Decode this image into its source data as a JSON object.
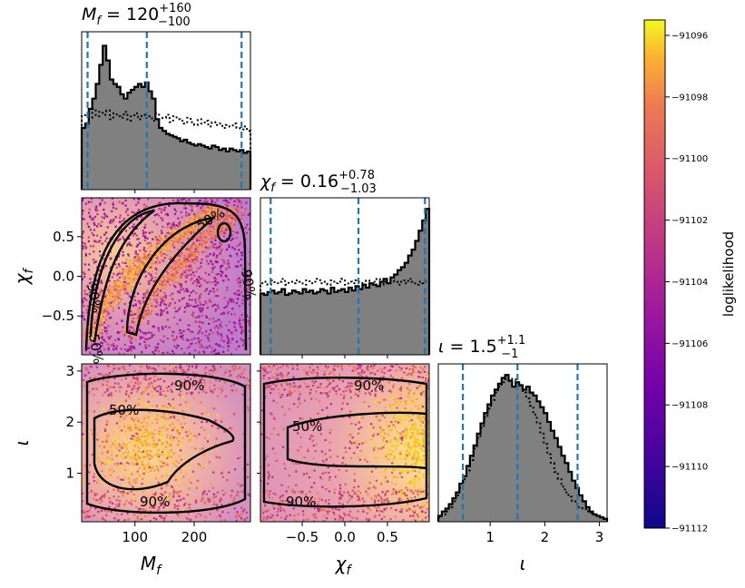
{
  "chart_data": {
    "type": "corner",
    "parameters": [
      {
        "symbol": "M",
        "sub": "f",
        "median": "120",
        "upper": "+160",
        "lower": "−100",
        "range": [
          10,
          295
        ]
      },
      {
        "symbol": "χ",
        "sub": "f",
        "median": "0.16",
        "upper": "+0.78",
        "lower": "−1.03",
        "range": [
          -0.99,
          0.99
        ]
      },
      {
        "symbol": "ι",
        "sub": "",
        "median": "1.5",
        "upper": "+1.1",
        "lower": "−1",
        "range": [
          0.05,
          3.14
        ]
      }
    ],
    "quantile_lines": {
      "M_f": [
        20,
        120,
        280
      ],
      "chi_f": [
        -0.87,
        0.16,
        0.94
      ],
      "iota": [
        0.5,
        1.5,
        2.6
      ]
    },
    "ticks": {
      "M_f": {
        "values": [
          100,
          200
        ],
        "labels": [
          "100",
          "200"
        ]
      },
      "chi_f": {
        "values": [
          -0.5,
          0.0,
          0.5
        ],
        "labels": [
          "−0.5",
          "0.0",
          "0.5"
        ]
      },
      "iota": {
        "values": [
          1,
          2,
          3
        ],
        "labels": [
          "1",
          "2",
          "3"
        ]
      }
    },
    "histograms": {
      "M_f": {
        "solid": [
          0.42,
          0.45,
          0.55,
          0.62,
          0.72,
          0.85,
          0.98,
          0.88,
          0.75,
          0.72,
          0.7,
          0.65,
          0.62,
          0.66,
          0.68,
          0.7,
          0.72,
          0.7,
          0.73,
          0.67,
          0.62,
          0.48,
          0.42,
          0.4,
          0.38,
          0.37,
          0.36,
          0.35,
          0.33,
          0.34,
          0.32,
          0.31,
          0.3,
          0.31,
          0.3,
          0.29,
          0.28,
          0.3,
          0.29,
          0.27,
          0.28,
          0.26,
          0.28,
          0.27,
          0.26,
          0.27,
          0.25,
          0.26
        ],
        "dotted": [
          0.5,
          0.52,
          0.49,
          0.55,
          0.5,
          0.53,
          0.51,
          0.54,
          0.48,
          0.52,
          0.5,
          0.49,
          0.53,
          0.47,
          0.5,
          0.52,
          0.48,
          0.51,
          0.49,
          0.5,
          0.47,
          0.52,
          0.48,
          0.49,
          0.51,
          0.46,
          0.5,
          0.48,
          0.47,
          0.45,
          0.49,
          0.46,
          0.44,
          0.48,
          0.45,
          0.47,
          0.43,
          0.46,
          0.44,
          0.45,
          0.42,
          0.44,
          0.43,
          0.45,
          0.42,
          0.41,
          0.43,
          0.4
        ]
      },
      "chi_f": {
        "solid": [
          0.42,
          0.41,
          0.43,
          0.44,
          0.42,
          0.43,
          0.45,
          0.41,
          0.42,
          0.44,
          0.43,
          0.42,
          0.45,
          0.43,
          0.44,
          0.42,
          0.43,
          0.45,
          0.44,
          0.42,
          0.46,
          0.43,
          0.44,
          0.45,
          0.43,
          0.46,
          0.44,
          0.47,
          0.45,
          0.48,
          0.46,
          0.49,
          0.48,
          0.47,
          0.5,
          0.52,
          0.49,
          0.53,
          0.55,
          0.58,
          0.6,
          0.63,
          0.68,
          0.72,
          0.78,
          0.85,
          0.92,
          1.0
        ],
        "dotted": [
          0.49,
          0.5,
          0.48,
          0.51,
          0.49,
          0.5,
          0.52,
          0.48,
          0.5,
          0.49,
          0.51,
          0.5,
          0.48,
          0.51,
          0.49,
          0.5,
          0.52,
          0.49,
          0.5,
          0.48,
          0.51,
          0.49,
          0.5,
          0.52,
          0.48,
          0.5,
          0.49,
          0.51,
          0.5,
          0.48,
          0.51,
          0.49,
          0.5,
          0.52,
          0.48,
          0.5,
          0.49,
          0.51,
          0.5,
          0.48,
          0.51,
          0.49,
          0.52,
          0.5,
          0.48,
          0.5,
          0.49,
          0.51
        ]
      },
      "iota": {
        "solid": [
          0.04,
          0.07,
          0.09,
          0.12,
          0.16,
          0.2,
          0.26,
          0.31,
          0.38,
          0.45,
          0.52,
          0.6,
          0.67,
          0.74,
          0.8,
          0.86,
          0.9,
          0.94,
          0.98,
          1.0,
          0.96,
          0.92,
          0.95,
          0.93,
          0.9,
          0.92,
          0.88,
          0.86,
          0.82,
          0.78,
          0.74,
          0.68,
          0.62,
          0.57,
          0.51,
          0.45,
          0.4,
          0.34,
          0.28,
          0.23,
          0.18,
          0.14,
          0.1,
          0.07,
          0.05,
          0.04,
          0.03,
          0.02
        ],
        "dotted": [
          0.03,
          0.05,
          0.07,
          0.1,
          0.14,
          0.18,
          0.23,
          0.29,
          0.35,
          0.42,
          0.5,
          0.57,
          0.64,
          0.71,
          0.77,
          0.83,
          0.88,
          0.92,
          0.95,
          0.97,
          0.98,
          0.97,
          0.95,
          0.92,
          0.88,
          0.84,
          0.79,
          0.73,
          0.67,
          0.6,
          0.53,
          0.46,
          0.4,
          0.34,
          0.29,
          0.24,
          0.2,
          0.17,
          0.14,
          0.12,
          0.1,
          0.09,
          0.07,
          0.06,
          0.05,
          0.04,
          0.03,
          0.02
        ]
      }
    },
    "contour_labels": [
      "50%",
      "90%"
    ],
    "colorbar": {
      "label": "loglikelihood",
      "range": [
        -91112,
        -91095.5
      ],
      "ticks": [
        -91096,
        -91098,
        -91100,
        -91102,
        -91104,
        -91106,
        -91108,
        -91110,
        -91112
      ],
      "tick_labels": [
        "−91096",
        "−91098",
        "−91100",
        "−91102",
        "−91104",
        "−91106",
        "−91108",
        "−91110",
        "−91112"
      ],
      "colormap": "plasma"
    },
    "colors": {
      "hist_fill": "#808080",
      "quantile_line": "#1f77b4",
      "contour": "#000000"
    }
  }
}
